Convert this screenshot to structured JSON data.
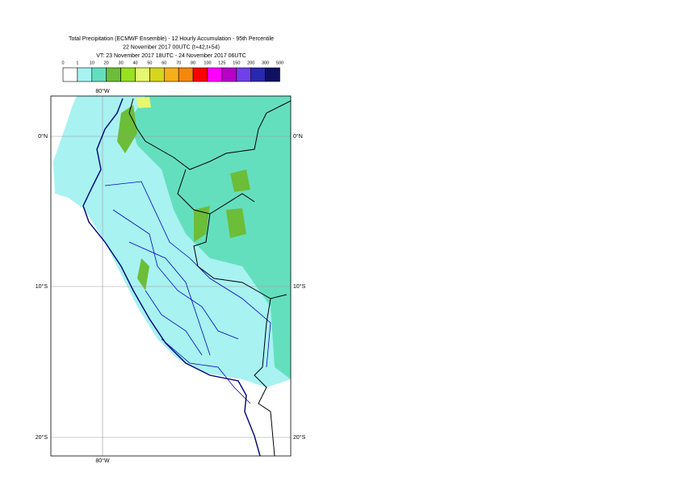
{
  "header": {
    "title_lines": [
      "Total Precipitation (ECMWF Ensemble) - 12 Hourly Accumulation - 95th Percentile",
      "22 November 2017 00UTC (t+42,t+54)",
      "VT: 23 November 2017 18UTC - 24 November 2017 06UTC"
    ]
  },
  "legend": {
    "labels": [
      "0",
      "1",
      "10",
      "20",
      "30",
      "40",
      "50",
      "60",
      "70",
      "80",
      "100",
      "125",
      "150",
      "200",
      "300",
      "500"
    ],
    "colors": [
      "#ffffff",
      "#a8f2f2",
      "#64dfbe",
      "#6cbd38",
      "#98e020",
      "#e6f870",
      "#d6d61e",
      "#f4b01a",
      "#f4880e",
      "#ff0000",
      "#ff00ff",
      "#b800c8",
      "#7040e8",
      "#2828b0",
      "#101060"
    ]
  },
  "map": {
    "lon_labels": [
      "80°W"
    ],
    "lat_labels": [
      "0°N",
      "10°S",
      "20°S"
    ]
  }
}
